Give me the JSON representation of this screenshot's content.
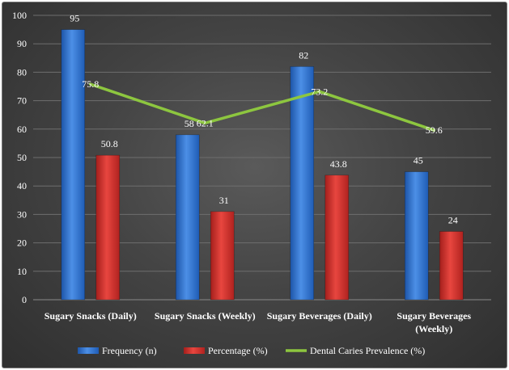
{
  "chart_data": {
    "type": "bar",
    "title": "",
    "xlabel": "",
    "ylabel": "",
    "ylim": [
      0,
      100
    ],
    "yticks": [
      0,
      10,
      20,
      30,
      40,
      50,
      60,
      70,
      80,
      90,
      100
    ],
    "grid": true,
    "legend_position": "bottom",
    "categories": [
      [
        "Sugary Snacks (Daily)"
      ],
      [
        "Sugary Snacks (Weekly)"
      ],
      [
        "Sugary Beverages (Daily)"
      ],
      [
        "Sugary Beverages",
        "(Weekly)"
      ]
    ],
    "series": [
      {
        "name": "Frequency (n)",
        "kind": "bar",
        "color": "#2f75d6",
        "values": [
          95,
          58,
          82,
          45
        ]
      },
      {
        "name": "Percentage (%)",
        "kind": "bar",
        "color": "#d8302c",
        "values": [
          50.8,
          31,
          43.8,
          24
        ]
      },
      {
        "name": "Dental Caries Prevalence (%)",
        "kind": "line",
        "color": "#8dc63f",
        "values": [
          75.8,
          62.1,
          73.2,
          59.6
        ]
      }
    ]
  }
}
